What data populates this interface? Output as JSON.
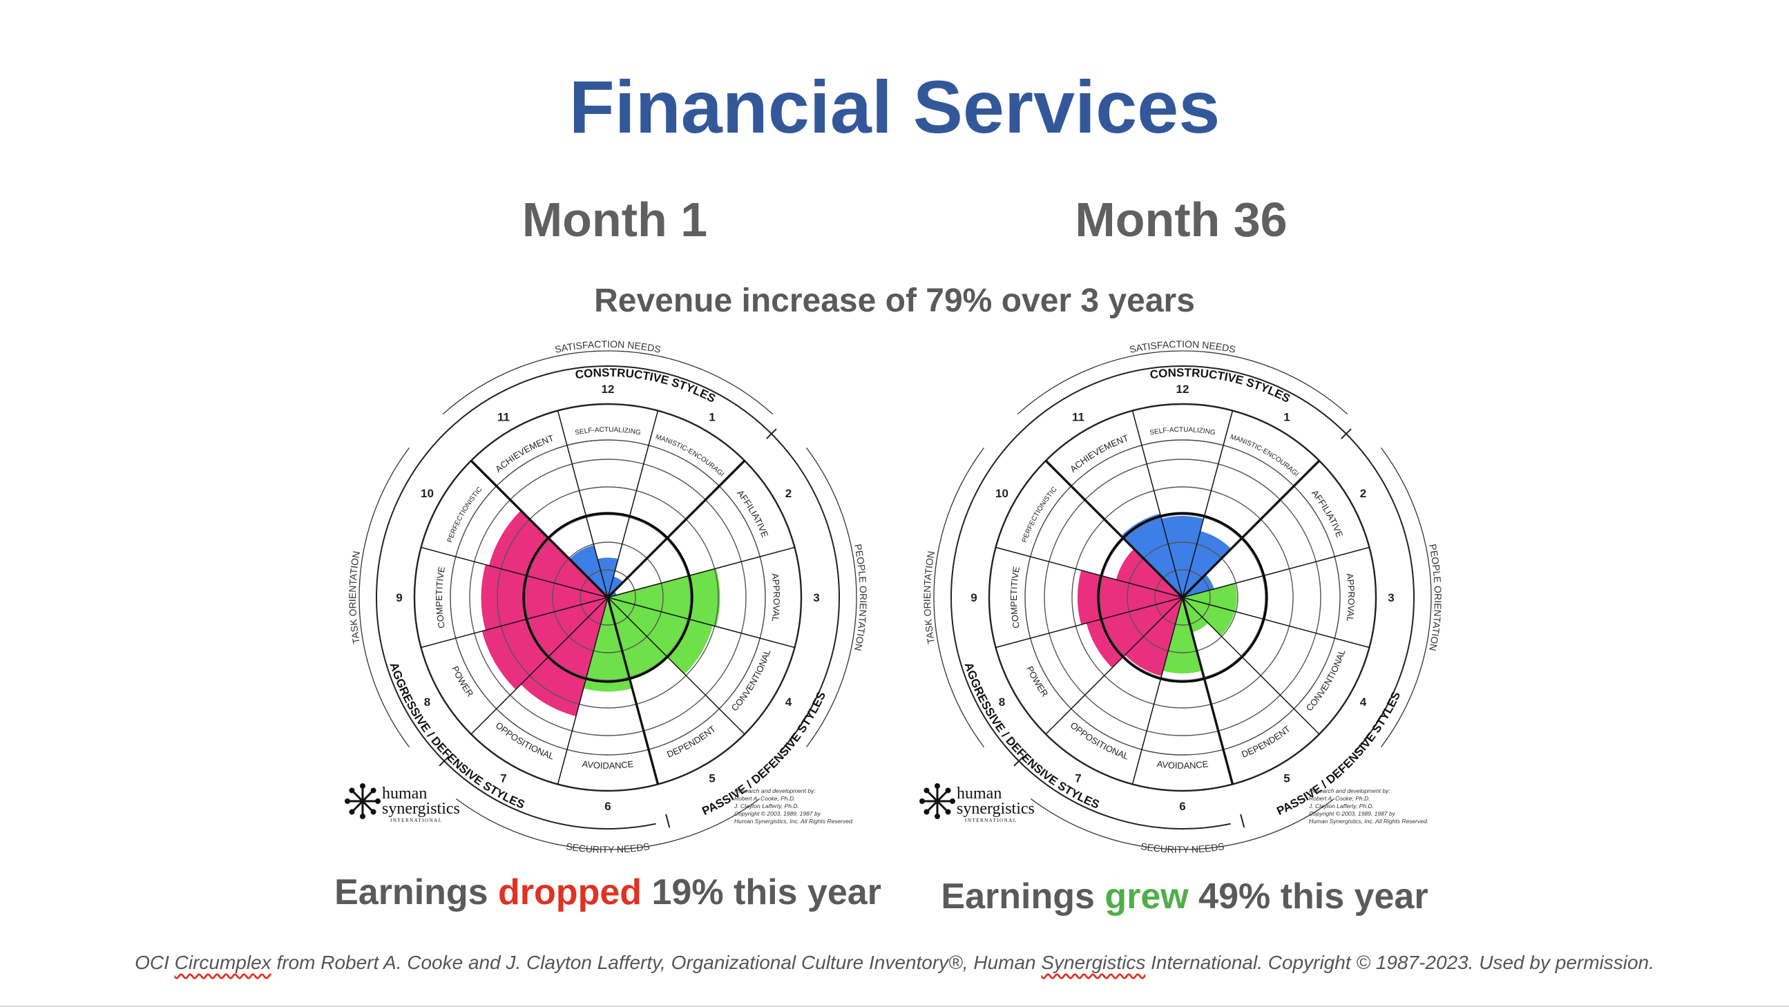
{
  "slide": {
    "title": "Financial Services",
    "subtitle": "Revenue increase of 79% over 3 years",
    "footer": {
      "part1": "OCI ",
      "word1": "Circumplex",
      "part2": " from Robert A. Cooke and J. Clayton Lafferty, Organizational Culture Inventory®, Human ",
      "word2": "Synergistics",
      "part3": " International. Copyright © 1987-2023. Used by permission."
    }
  },
  "panels": [
    {
      "heading": "Month 1",
      "earnings": {
        "pre": "Earnings ",
        "word": "dropped",
        "post": " 19% this year",
        "word_color": "#e03222"
      }
    },
    {
      "heading": "Month 36",
      "earnings": {
        "pre": "Earnings ",
        "word": "grew",
        "post": " 49% this year",
        "word_color": "#4fae48"
      }
    }
  ],
  "circumplex_labels": {
    "styles": [
      "SELF-ACTUALIZING",
      "HUMANISTIC-ENCOURAGING",
      "AFFILIATIVE",
      "APPROVAL",
      "CONVENTIONAL",
      "DEPENDENT",
      "AVOIDANCE",
      "OPPOSITIONAL",
      "POWER",
      "COMPETITIVE",
      "PERFECTIONISTIC",
      "ACHIEVEMENT"
    ],
    "numbers": [
      "12",
      "1",
      "2",
      "3",
      "4",
      "5",
      "6",
      "7",
      "8",
      "9",
      "10",
      "11"
    ],
    "constructive": "CONSTRUCTIVE STYLES",
    "passive": "PASSIVE / DEFENSIVE STYLES",
    "aggressive": "AGGRESSIVE / DEFENSIVE STYLES",
    "satisfaction": "SATISFACTION NEEDS",
    "security": "SECURITY NEEDS",
    "people": "PEOPLE ORIENTATION",
    "task": "TASK ORIENTATION",
    "logo_line1": "human",
    "logo_line2": "synergistics",
    "logo_line3": "INTERNATIONAL",
    "credit_lines": [
      "Research and development by:",
      "Robert A. Cooke, Ph.D.",
      "J. Clayton Lafferty, Ph.D.",
      "Copyright © 2003, 1989, 1987 by",
      "Human Synergistics, Inc. All Rights Reserved."
    ]
  },
  "colors": {
    "constructive": "#3d7fe6",
    "passive": "#6ee04a",
    "aggressive": "#e8307e",
    "title": "#33589a"
  },
  "chart_data": [
    {
      "type": "circumplex",
      "name": "Month 1",
      "scale_max": 100,
      "styles": [
        "SELF-ACTUALIZING",
        "HUMANISTIC-ENCOURAGING",
        "AFFILIATIVE",
        "APPROVAL",
        "CONVENTIONAL",
        "DEPENDENT",
        "AVOIDANCE",
        "OPPOSITIONAL",
        "POWER",
        "COMPETITIVE",
        "PERFECTIONISTIC",
        "ACHIEVEMENT"
      ],
      "values": [
        22,
        12,
        5,
        62,
        60,
        46,
        52,
        68,
        72,
        70,
        68,
        30
      ]
    },
    {
      "type": "circumplex",
      "name": "Month 36",
      "scale_max": 100,
      "styles": [
        "SELF-ACTUALIZING",
        "HUMANISTIC-ENCOURAGING",
        "AFFILIATIVE",
        "APPROVAL",
        "CONVENTIONAL",
        "DEPENDENT",
        "AVOIDANCE",
        "OPPOSITIONAL",
        "POWER",
        "COMPETITIVE",
        "PERFECTIONISTIC",
        "ACHIEVEMENT"
      ],
      "values": [
        45,
        38,
        18,
        30,
        30,
        20,
        42,
        45,
        55,
        58,
        38,
        48
      ]
    }
  ]
}
